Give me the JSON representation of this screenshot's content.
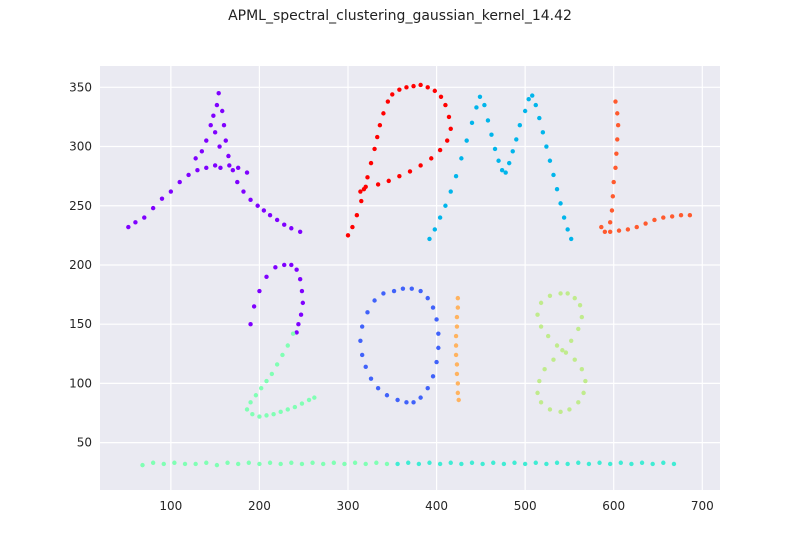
{
  "title": "APML_spectral_clustering_gaussian_kernel_14.42",
  "chart_data": {
    "type": "scatter",
    "title": "APML_spectral_clustering_gaussian_kernel_14.42",
    "xlabel": "",
    "ylabel": "",
    "xlim": [
      20,
      720
    ],
    "ylim": [
      10,
      368
    ],
    "x_ticks": [
      100,
      200,
      300,
      400,
      500,
      600,
      700
    ],
    "y_ticks": [
      50,
      100,
      150,
      200,
      250,
      300,
      350
    ],
    "grid": true,
    "legend": "none",
    "background_color": "#eaeaf2",
    "grid_color": "#ffffff",
    "series": [
      {
        "color": "#7f00ff",
        "shape": "letter A + top arc of digit 2",
        "points": [
          [
            52,
            232
          ],
          [
            60,
            236
          ],
          [
            70,
            240
          ],
          [
            80,
            248
          ],
          [
            90,
            256
          ],
          [
            100,
            262
          ],
          [
            110,
            270
          ],
          [
            120,
            276
          ],
          [
            130,
            280
          ],
          [
            140,
            282
          ],
          [
            150,
            284
          ],
          [
            155,
            300
          ],
          [
            150,
            312
          ],
          [
            145,
            318
          ],
          [
            140,
            305
          ],
          [
            135,
            296
          ],
          [
            128,
            290
          ],
          [
            148,
            326
          ],
          [
            152,
            335
          ],
          [
            154,
            345
          ],
          [
            158,
            330
          ],
          [
            160,
            318
          ],
          [
            162,
            305
          ],
          [
            165,
            292
          ],
          [
            170,
            280
          ],
          [
            175,
            270
          ],
          [
            182,
            262
          ],
          [
            190,
            255
          ],
          [
            198,
            250
          ],
          [
            205,
            246
          ],
          [
            212,
            242
          ],
          [
            220,
            238
          ],
          [
            228,
            234
          ],
          [
            236,
            231
          ],
          [
            246,
            228
          ],
          [
            156,
            282
          ],
          [
            166,
            284
          ],
          [
            176,
            282
          ],
          [
            186,
            278
          ],
          [
            190,
            150
          ],
          [
            194,
            165
          ],
          [
            200,
            178
          ],
          [
            208,
            190
          ],
          [
            218,
            198
          ],
          [
            228,
            200
          ],
          [
            236,
            200
          ],
          [
            242,
            196
          ],
          [
            246,
            188
          ],
          [
            248,
            178
          ],
          [
            249,
            168
          ],
          [
            247,
            158
          ],
          [
            244,
            150
          ],
          [
            242,
            143
          ]
        ]
      },
      {
        "color": "#ff0000",
        "shape": "letter P",
        "points": [
          [
            300,
            225
          ],
          [
            305,
            232
          ],
          [
            310,
            242
          ],
          [
            315,
            254
          ],
          [
            318,
            264
          ],
          [
            322,
            274
          ],
          [
            326,
            286
          ],
          [
            330,
            298
          ],
          [
            333,
            308
          ],
          [
            336,
            318
          ],
          [
            340,
            328
          ],
          [
            345,
            338
          ],
          [
            350,
            344
          ],
          [
            358,
            348
          ],
          [
            366,
            350
          ],
          [
            374,
            351
          ],
          [
            382,
            352
          ],
          [
            390,
            350
          ],
          [
            398,
            347
          ],
          [
            405,
            342
          ],
          [
            410,
            335
          ],
          [
            414,
            325
          ],
          [
            416,
            315
          ],
          [
            412,
            305
          ],
          [
            404,
            297
          ],
          [
            394,
            290
          ],
          [
            382,
            284
          ],
          [
            370,
            279
          ],
          [
            358,
            275
          ],
          [
            346,
            271
          ],
          [
            334,
            268
          ],
          [
            320,
            266
          ],
          [
            314,
            262
          ]
        ]
      },
      {
        "color": "#00b5eb",
        "shape": "letter M",
        "points": [
          [
            392,
            222
          ],
          [
            398,
            230
          ],
          [
            404,
            240
          ],
          [
            410,
            250
          ],
          [
            416,
            262
          ],
          [
            422,
            275
          ],
          [
            428,
            290
          ],
          [
            434,
            305
          ],
          [
            440,
            320
          ],
          [
            445,
            333
          ],
          [
            449,
            342
          ],
          [
            454,
            335
          ],
          [
            458,
            322
          ],
          [
            462,
            310
          ],
          [
            466,
            298
          ],
          [
            470,
            288
          ],
          [
            474,
            280
          ],
          [
            478,
            278
          ],
          [
            482,
            286
          ],
          [
            486,
            296
          ],
          [
            490,
            306
          ],
          [
            494,
            318
          ],
          [
            500,
            330
          ],
          [
            504,
            340
          ],
          [
            508,
            343
          ],
          [
            512,
            335
          ],
          [
            516,
            324
          ],
          [
            520,
            312
          ],
          [
            524,
            300
          ],
          [
            528,
            288
          ],
          [
            532,
            276
          ],
          [
            536,
            264
          ],
          [
            540,
            252
          ],
          [
            544,
            240
          ],
          [
            548,
            230
          ],
          [
            552,
            222
          ]
        ]
      },
      {
        "color": "#ff5a2e",
        "shape": "letter L",
        "points": [
          [
            602,
            338
          ],
          [
            604,
            328
          ],
          [
            605,
            318
          ],
          [
            604,
            306
          ],
          [
            603,
            294
          ],
          [
            602,
            282
          ],
          [
            600,
            270
          ],
          [
            599,
            258
          ],
          [
            598,
            246
          ],
          [
            596,
            236
          ],
          [
            590,
            228
          ],
          [
            586,
            232
          ],
          [
            596,
            228
          ],
          [
            606,
            229
          ],
          [
            616,
            230
          ],
          [
            626,
            232
          ],
          [
            636,
            235
          ],
          [
            646,
            238
          ],
          [
            656,
            240
          ],
          [
            666,
            241
          ],
          [
            676,
            242
          ],
          [
            686,
            242
          ]
        ]
      },
      {
        "color": "#80ffb4",
        "shape": "digit 2 lower stroke + left half of baseline",
        "points": [
          [
            238,
            142
          ],
          [
            232,
            132
          ],
          [
            226,
            124
          ],
          [
            220,
            116
          ],
          [
            214,
            108
          ],
          [
            208,
            102
          ],
          [
            202,
            96
          ],
          [
            196,
            90
          ],
          [
            190,
            84
          ],
          [
            186,
            78
          ],
          [
            192,
            74
          ],
          [
            200,
            72
          ],
          [
            208,
            73
          ],
          [
            216,
            74
          ],
          [
            224,
            76
          ],
          [
            232,
            78
          ],
          [
            240,
            80
          ],
          [
            248,
            83
          ],
          [
            256,
            86
          ],
          [
            262,
            88
          ],
          [
            68,
            31
          ],
          [
            80,
            33
          ],
          [
            92,
            32
          ],
          [
            104,
            33
          ],
          [
            116,
            32
          ],
          [
            128,
            32
          ],
          [
            140,
            33
          ],
          [
            152,
            31
          ],
          [
            164,
            33
          ],
          [
            176,
            32
          ],
          [
            188,
            33
          ],
          [
            200,
            32
          ],
          [
            212,
            33
          ],
          [
            224,
            32
          ],
          [
            236,
            33
          ],
          [
            248,
            32
          ],
          [
            260,
            33
          ],
          [
            272,
            32
          ],
          [
            284,
            33
          ],
          [
            296,
            32
          ],
          [
            308,
            33
          ],
          [
            320,
            32
          ],
          [
            332,
            33
          ],
          [
            344,
            32
          ]
        ]
      },
      {
        "color": "#4062fa",
        "shape": "digit 0",
        "points": [
          [
            352,
            178
          ],
          [
            340,
            176
          ],
          [
            330,
            170
          ],
          [
            322,
            160
          ],
          [
            316,
            148
          ],
          [
            314,
            136
          ],
          [
            316,
            124
          ],
          [
            320,
            114
          ],
          [
            326,
            104
          ],
          [
            334,
            96
          ],
          [
            344,
            90
          ],
          [
            356,
            86
          ],
          [
            366,
            84
          ],
          [
            374,
            84
          ],
          [
            382,
            88
          ],
          [
            390,
            96
          ],
          [
            396,
            106
          ],
          [
            400,
            118
          ],
          [
            402,
            130
          ],
          [
            402,
            142
          ],
          [
            400,
            154
          ],
          [
            396,
            164
          ],
          [
            390,
            172
          ],
          [
            382,
            178
          ],
          [
            372,
            180
          ],
          [
            362,
            180
          ]
        ]
      },
      {
        "color": "#ffb360",
        "shape": "digit 1",
        "points": [
          [
            424,
            172
          ],
          [
            424,
            164
          ],
          [
            423,
            156
          ],
          [
            423,
            148
          ],
          [
            422,
            140
          ],
          [
            422,
            132
          ],
          [
            422,
            124
          ],
          [
            423,
            116
          ],
          [
            423,
            108
          ],
          [
            424,
            100
          ],
          [
            424,
            92
          ],
          [
            425,
            86
          ]
        ]
      },
      {
        "color": "#c0eb8d",
        "shape": "digit 8",
        "points": [
          [
            540,
            176
          ],
          [
            528,
            174
          ],
          [
            518,
            168
          ],
          [
            514,
            158
          ],
          [
            518,
            148
          ],
          [
            526,
            140
          ],
          [
            536,
            132
          ],
          [
            546,
            126
          ],
          [
            556,
            120
          ],
          [
            564,
            112
          ],
          [
            568,
            102
          ],
          [
            566,
            92
          ],
          [
            560,
            84
          ],
          [
            550,
            78
          ],
          [
            540,
            76
          ],
          [
            528,
            78
          ],
          [
            518,
            84
          ],
          [
            514,
            92
          ],
          [
            516,
            102
          ],
          [
            522,
            112
          ],
          [
            532,
            120
          ],
          [
            542,
            128
          ],
          [
            552,
            136
          ],
          [
            560,
            146
          ],
          [
            564,
            156
          ],
          [
            562,
            166
          ],
          [
            556,
            172
          ],
          [
            548,
            176
          ]
        ]
      },
      {
        "color": "#40ecd4",
        "shape": "right half of baseline",
        "points": [
          [
            356,
            32
          ],
          [
            368,
            33
          ],
          [
            380,
            32
          ],
          [
            392,
            33
          ],
          [
            404,
            32
          ],
          [
            416,
            33
          ],
          [
            428,
            32
          ],
          [
            440,
            33
          ],
          [
            452,
            32
          ],
          [
            464,
            33
          ],
          [
            476,
            32
          ],
          [
            488,
            33
          ],
          [
            500,
            32
          ],
          [
            512,
            33
          ],
          [
            524,
            32
          ],
          [
            536,
            33
          ],
          [
            548,
            32
          ],
          [
            560,
            33
          ],
          [
            572,
            32
          ],
          [
            584,
            33
          ],
          [
            596,
            32
          ],
          [
            608,
            33
          ],
          [
            620,
            32
          ],
          [
            632,
            33
          ],
          [
            644,
            32
          ],
          [
            656,
            33
          ],
          [
            668,
            32
          ]
        ]
      }
    ]
  }
}
